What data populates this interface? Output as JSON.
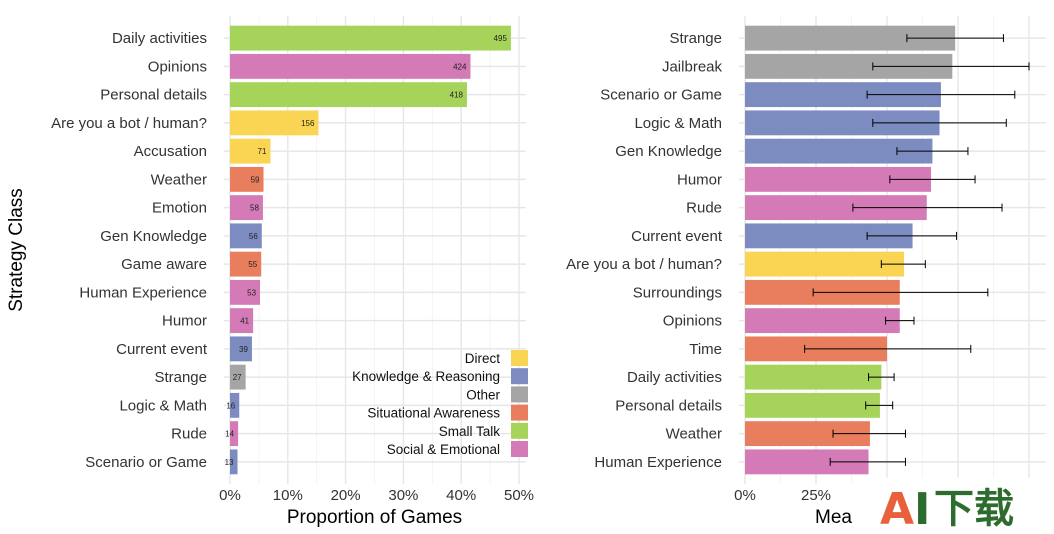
{
  "colors": {
    "Direct": "#f9d553",
    "Knowledge & Reasoning": "#7d8cc0",
    "Other": "#a5a5a5",
    "Situational Awareness": "#e97e5e",
    "Small Talk": "#a6d35a",
    "Social & Emotional": "#d47ab7"
  },
  "watermark": {
    "text_a": "A",
    "text_i": "I",
    "text_cn": "下载"
  },
  "chart_data": [
    {
      "type": "bar",
      "orientation": "horizontal",
      "xlabel": "Proportion of Games",
      "ylabel": "Strategy Class",
      "xlim": [
        0,
        0.5
      ],
      "x_ticks": [
        0,
        0.1,
        0.2,
        0.3,
        0.4,
        0.5
      ],
      "x_tick_labels": [
        "0%",
        "10%",
        "20%",
        "30%",
        "40%",
        "50%"
      ],
      "grid": true,
      "legend_placement": "bottom-right",
      "legend": [
        {
          "label": "Direct",
          "color": "#f9d553"
        },
        {
          "label": "Knowledge & Reasoning",
          "color": "#7d8cc0"
        },
        {
          "label": "Other",
          "color": "#a5a5a5"
        },
        {
          "label": "Situational Awareness",
          "color": "#e97e5e"
        },
        {
          "label": "Small Talk",
          "color": "#a6d35a"
        },
        {
          "label": "Social & Emotional",
          "color": "#d47ab7"
        }
      ],
      "bars": [
        {
          "label": "Daily activities",
          "value": 0.486,
          "count": "495",
          "group": "Small Talk"
        },
        {
          "label": "Opinions",
          "value": 0.416,
          "count": "424",
          "group": "Social & Emotional"
        },
        {
          "label": "Personal details",
          "value": 0.41,
          "count": "418",
          "group": "Small Talk"
        },
        {
          "label": "Are you a bot / human?",
          "value": 0.153,
          "count": "156",
          "group": "Direct"
        },
        {
          "label": "Accusation",
          "value": 0.07,
          "count": "71",
          "group": "Direct"
        },
        {
          "label": "Weather",
          "value": 0.058,
          "count": "59",
          "group": "Situational Awareness"
        },
        {
          "label": "Emotion",
          "value": 0.057,
          "count": "58",
          "group": "Social & Emotional"
        },
        {
          "label": "Gen Knowledge",
          "value": 0.055,
          "count": "56",
          "group": "Knowledge & Reasoning"
        },
        {
          "label": "Game aware",
          "value": 0.054,
          "count": "55",
          "group": "Situational Awareness"
        },
        {
          "label": "Human Experience",
          "value": 0.052,
          "count": "53",
          "group": "Social & Emotional"
        },
        {
          "label": "Humor",
          "value": 0.04,
          "count": "41",
          "group": "Social & Emotional"
        },
        {
          "label": "Current event",
          "value": 0.038,
          "count": "39",
          "group": "Knowledge & Reasoning"
        },
        {
          "label": "Strange",
          "value": 0.027,
          "count": "27",
          "group": "Other"
        },
        {
          "label": "Logic & Math",
          "value": 0.016,
          "count": "16",
          "group": "Knowledge & Reasoning"
        },
        {
          "label": "Rude",
          "value": 0.014,
          "count": "14",
          "group": "Social & Emotional"
        },
        {
          "label": "Scenario or Game",
          "value": 0.013,
          "count": "13",
          "group": "Knowledge & Reasoning"
        }
      ]
    },
    {
      "type": "bar",
      "orientation": "horizontal",
      "xlabel": "Mea",
      "xlim": [
        0,
        1
      ],
      "x_ticks": [
        0,
        0.25
      ],
      "x_tick_labels": [
        "0%",
        "25%"
      ],
      "grid": true,
      "error_bars": true,
      "bars": [
        {
          "label": "Strange",
          "value": 0.74,
          "err_low": 0.57,
          "err_high": 0.91,
          "group": "Other"
        },
        {
          "label": "Jailbreak",
          "value": 0.73,
          "err_low": 0.45,
          "err_high": 1.0,
          "group": "Other"
        },
        {
          "label": "Scenario or Game",
          "value": 0.69,
          "err_low": 0.43,
          "err_high": 0.95,
          "group": "Knowledge & Reasoning"
        },
        {
          "label": "Logic & Math",
          "value": 0.685,
          "err_low": 0.45,
          "err_high": 0.92,
          "group": "Knowledge & Reasoning"
        },
        {
          "label": "Gen Knowledge",
          "value": 0.66,
          "err_low": 0.535,
          "err_high": 0.785,
          "group": "Knowledge & Reasoning"
        },
        {
          "label": "Humor",
          "value": 0.655,
          "err_low": 0.51,
          "err_high": 0.81,
          "group": "Social & Emotional"
        },
        {
          "label": "Rude",
          "value": 0.64,
          "err_low": 0.38,
          "err_high": 0.905,
          "group": "Social & Emotional"
        },
        {
          "label": "Current event",
          "value": 0.59,
          "err_low": 0.43,
          "err_high": 0.745,
          "group": "Knowledge & Reasoning"
        },
        {
          "label": "Are you a bot / human?",
          "value": 0.56,
          "err_low": 0.48,
          "err_high": 0.635,
          "group": "Direct"
        },
        {
          "label": "Surroundings",
          "value": 0.545,
          "err_low": 0.24,
          "err_high": 0.855,
          "group": "Situational Awareness"
        },
        {
          "label": "Opinions",
          "value": 0.545,
          "err_low": 0.495,
          "err_high": 0.595,
          "group": "Social & Emotional"
        },
        {
          "label": "Time",
          "value": 0.5,
          "err_low": 0.21,
          "err_high": 0.795,
          "group": "Situational Awareness"
        },
        {
          "label": "Daily activities",
          "value": 0.48,
          "err_low": 0.435,
          "err_high": 0.525,
          "group": "Small Talk"
        },
        {
          "label": "Personal details",
          "value": 0.475,
          "err_low": 0.425,
          "err_high": 0.52,
          "group": "Small Talk"
        },
        {
          "label": "Weather",
          "value": 0.44,
          "err_low": 0.31,
          "err_high": 0.565,
          "group": "Situational Awareness"
        },
        {
          "label": "Human Experience",
          "value": 0.435,
          "err_low": 0.3,
          "err_high": 0.565,
          "group": "Social & Emotional"
        }
      ]
    }
  ]
}
